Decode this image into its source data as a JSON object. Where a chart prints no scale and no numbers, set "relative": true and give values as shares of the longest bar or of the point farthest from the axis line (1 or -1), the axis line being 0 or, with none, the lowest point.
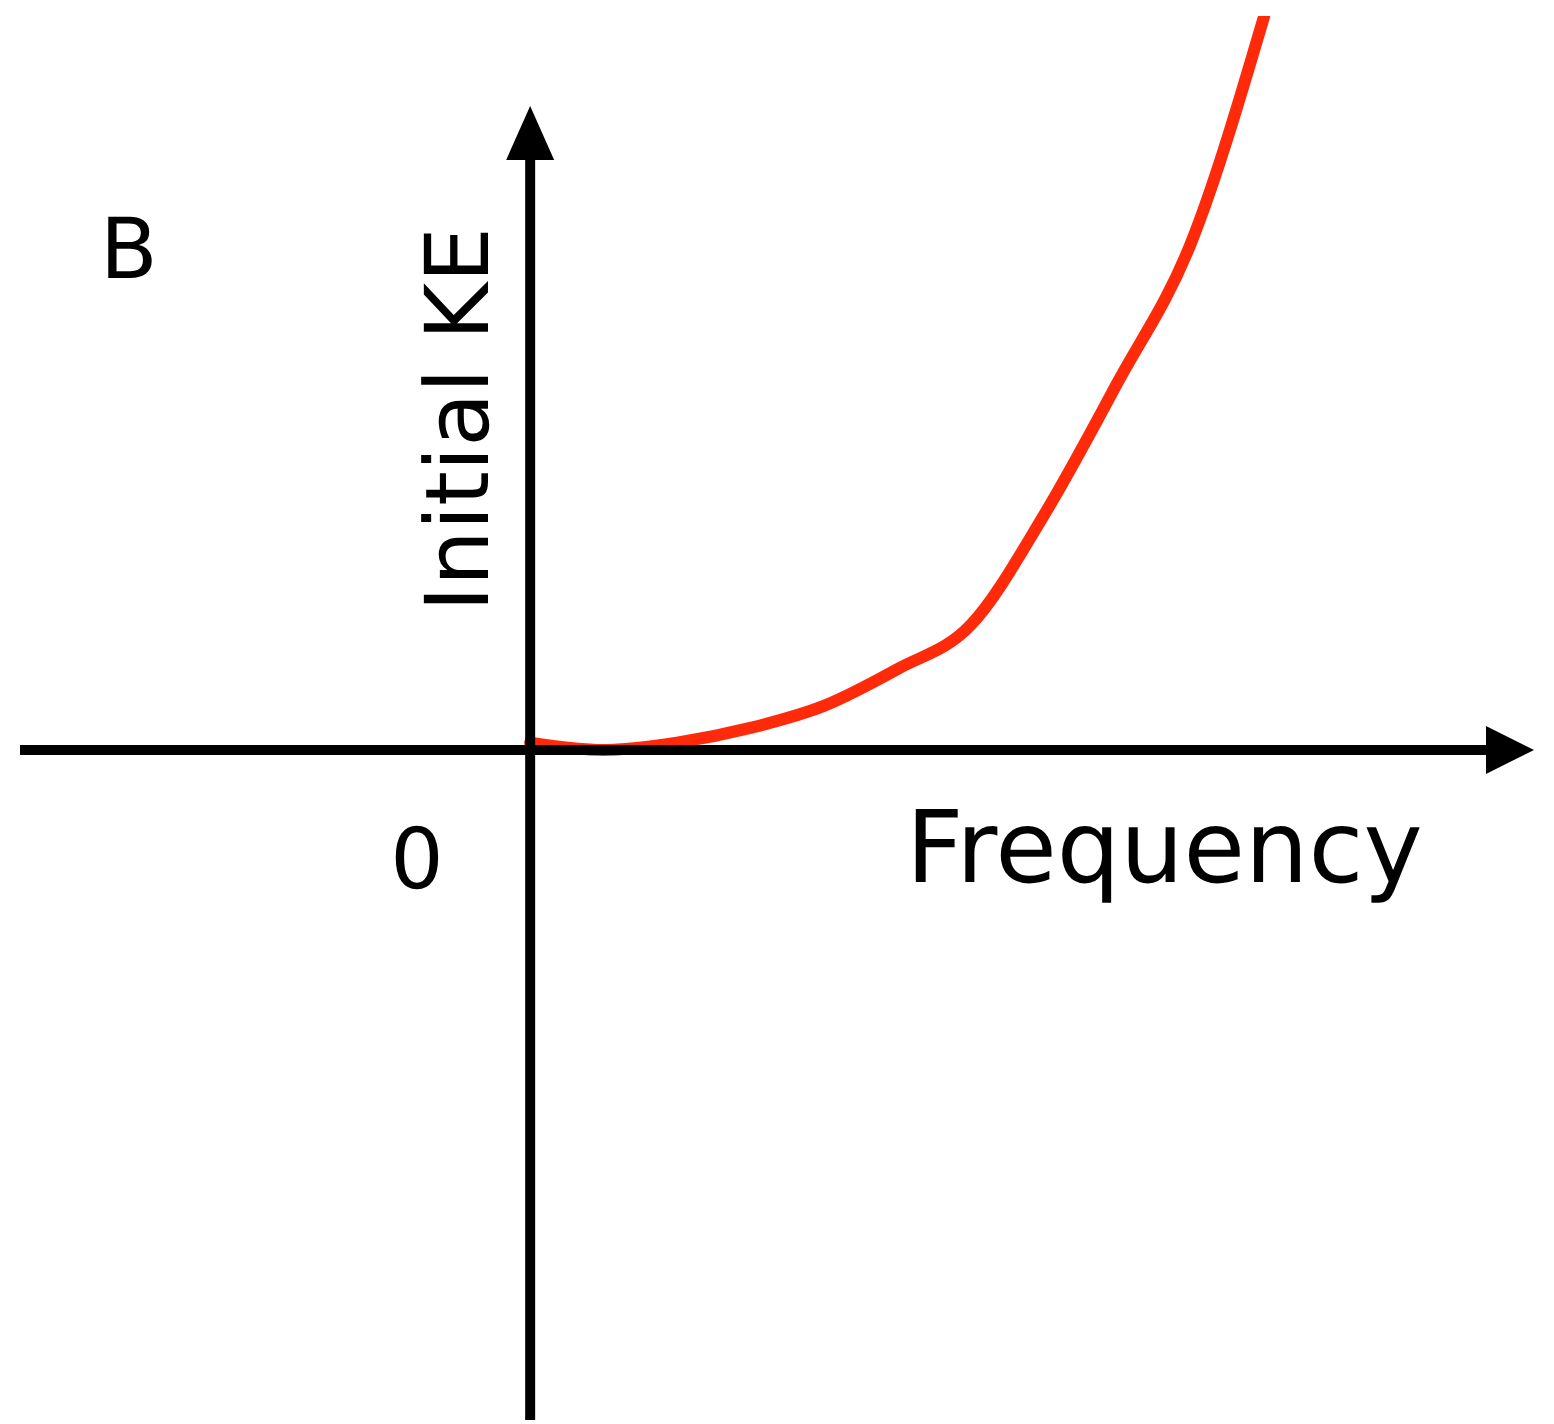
{
  "chart_data": {
    "type": "line",
    "title": "B",
    "xlabel": "Frequency",
    "ylabel": "Initial KE",
    "annotations": [
      "0"
    ],
    "relative": true,
    "categories": [
      null,
      null,
      null,
      null,
      null,
      null,
      null,
      null,
      null,
      null,
      null
    ],
    "series": [
      {
        "color": "#ff2a0a",
        "values": [
          0.01,
          0.0,
          0.01,
          0.03,
          0.06,
          0.11,
          0.17,
          0.32,
          0.5,
          0.69,
          1
        ]
      }
    ],
    "marker": "none",
    "line_style": "solid"
  }
}
